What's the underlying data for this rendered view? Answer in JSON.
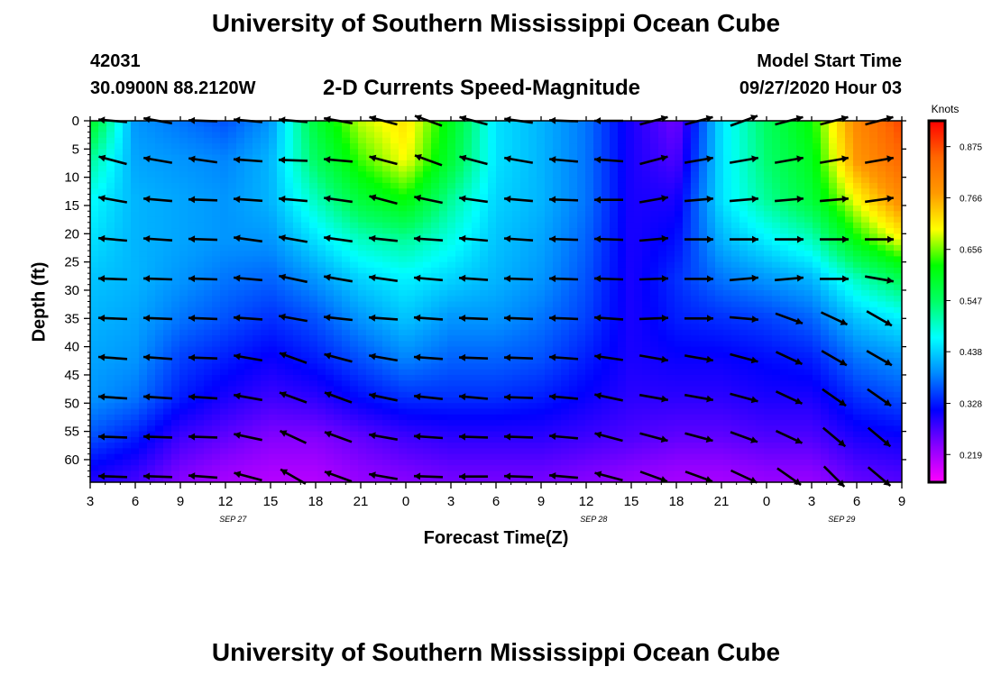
{
  "header": {
    "title": "University of Southern Mississippi Ocean Cube",
    "station_id": "42031",
    "station_coords": "30.0900N 88.2120W",
    "subtitle": "2-D Currents Speed-Magnitude",
    "model_label": "Model Start Time",
    "model_time": "09/27/2020 Hour 03"
  },
  "footer": {
    "title": "University of Southern Mississippi Ocean Cube"
  },
  "chart_data": {
    "type": "heatmap",
    "title": "2-D Currents Speed-Magnitude",
    "xlabel": "Forecast Time(Z)",
    "ylabel": "Depth (ft)",
    "colorbar_label": "Knots",
    "x_tick_labels": [
      "3",
      "6",
      "9",
      "12",
      "15",
      "18",
      "21",
      "0",
      "3",
      "6",
      "9",
      "12",
      "15",
      "18",
      "21",
      "0",
      "3",
      "6",
      "9"
    ],
    "x_hours": [
      0,
      3,
      6,
      9,
      12,
      15,
      18,
      21,
      24,
      27,
      30,
      33,
      36,
      39,
      42,
      45,
      48,
      51,
      54
    ],
    "date_labels": [
      {
        "text": "SEP 27",
        "hour": 9.5
      },
      {
        "text": "SEP 28",
        "hour": 33.5
      },
      {
        "text": "SEP 29",
        "hour": 50
      }
    ],
    "y_ticks": [
      0,
      5,
      10,
      15,
      20,
      25,
      30,
      35,
      40,
      45,
      50,
      55,
      60
    ],
    "ylim": [
      0,
      64
    ],
    "colorbar_ticks": [
      "0.875",
      "0.766",
      "0.656",
      "0.547",
      "0.438",
      "0.328",
      "0.219"
    ],
    "colorbar_range": [
      0.16,
      0.93
    ],
    "colors": {
      "scale": [
        "#ff00ff",
        "#8800ff",
        "#0000ff",
        "#0088ff",
        "#00ffff",
        "#00ff66",
        "#00ff00",
        "#ffff00",
        "#ff9900",
        "#ff6600",
        "#ff0000"
      ]
    },
    "speed_profiles": [
      {
        "hour": 0,
        "depths": [
          0,
          7,
          14,
          21,
          28,
          35,
          42,
          49,
          56,
          63
        ],
        "values": [
          0.6,
          0.52,
          0.47,
          0.45,
          0.43,
          0.42,
          0.41,
          0.4,
          0.36,
          0.3
        ]
      },
      {
        "hour": 3,
        "depths": [
          0,
          7,
          14,
          21,
          28,
          35,
          42,
          49,
          56,
          63
        ],
        "values": [
          0.4,
          0.41,
          0.42,
          0.42,
          0.42,
          0.41,
          0.4,
          0.38,
          0.33,
          0.28
        ]
      },
      {
        "hour": 6,
        "depths": [
          0,
          7,
          14,
          21,
          28,
          35,
          42,
          49,
          56,
          63
        ],
        "values": [
          0.38,
          0.4,
          0.41,
          0.41,
          0.4,
          0.38,
          0.35,
          0.33,
          0.28,
          0.24
        ]
      },
      {
        "hour": 9,
        "depths": [
          0,
          7,
          14,
          21,
          28,
          35,
          42,
          49,
          56,
          63
        ],
        "values": [
          0.36,
          0.39,
          0.4,
          0.4,
          0.38,
          0.36,
          0.33,
          0.3,
          0.26,
          0.22
        ]
      },
      {
        "hour": 12,
        "depths": [
          0,
          7,
          14,
          21,
          28,
          35,
          42,
          49,
          56,
          63
        ],
        "values": [
          0.4,
          0.42,
          0.42,
          0.4,
          0.37,
          0.34,
          0.31,
          0.28,
          0.24,
          0.21
        ]
      },
      {
        "hour": 15,
        "depths": [
          0,
          7,
          14,
          21,
          28,
          35,
          42,
          49,
          56,
          63
        ],
        "values": [
          0.58,
          0.55,
          0.5,
          0.45,
          0.4,
          0.36,
          0.33,
          0.29,
          0.24,
          0.21
        ]
      },
      {
        "hour": 18,
        "depths": [
          0,
          7,
          14,
          21,
          28,
          35,
          42,
          49,
          56,
          63
        ],
        "values": [
          0.68,
          0.64,
          0.58,
          0.5,
          0.44,
          0.4,
          0.36,
          0.32,
          0.26,
          0.23
        ]
      },
      {
        "hour": 21,
        "depths": [
          0,
          7,
          14,
          21,
          28,
          35,
          42,
          49,
          56,
          63
        ],
        "values": [
          0.72,
          0.7,
          0.62,
          0.52,
          0.46,
          0.43,
          0.39,
          0.34,
          0.28,
          0.24
        ]
      },
      {
        "hour": 24,
        "depths": [
          0,
          7,
          14,
          21,
          28,
          35,
          42,
          49,
          56,
          63
        ],
        "values": [
          0.6,
          0.58,
          0.52,
          0.48,
          0.44,
          0.4,
          0.37,
          0.34,
          0.29,
          0.25
        ]
      },
      {
        "hour": 27,
        "depths": [
          0,
          7,
          14,
          21,
          28,
          35,
          42,
          49,
          56,
          63
        ],
        "values": [
          0.45,
          0.45,
          0.44,
          0.43,
          0.42,
          0.4,
          0.37,
          0.34,
          0.29,
          0.25
        ]
      },
      {
        "hour": 30,
        "depths": [
          0,
          7,
          14,
          21,
          28,
          35,
          42,
          49,
          56,
          63
        ],
        "values": [
          0.42,
          0.42,
          0.42,
          0.41,
          0.4,
          0.38,
          0.36,
          0.33,
          0.29,
          0.25
        ]
      },
      {
        "hour": 33,
        "depths": [
          0,
          7,
          14,
          21,
          28,
          35,
          42,
          49,
          56,
          63
        ],
        "values": [
          0.38,
          0.38,
          0.38,
          0.37,
          0.36,
          0.35,
          0.33,
          0.31,
          0.28,
          0.24
        ]
      },
      {
        "hour": 36,
        "depths": [
          0,
          7,
          14,
          21,
          28,
          35,
          42,
          49,
          56,
          63
        ],
        "values": [
          0.3,
          0.3,
          0.3,
          0.3,
          0.3,
          0.3,
          0.3,
          0.29,
          0.27,
          0.23
        ]
      },
      {
        "hour": 39,
        "depths": [
          0,
          7,
          14,
          21,
          28,
          35,
          42,
          49,
          56,
          63
        ],
        "values": [
          0.25,
          0.27,
          0.3,
          0.32,
          0.34,
          0.33,
          0.31,
          0.29,
          0.26,
          0.22
        ]
      },
      {
        "hour": 42,
        "depths": [
          0,
          7,
          14,
          21,
          28,
          35,
          42,
          49,
          56,
          63
        ],
        "values": [
          0.45,
          0.45,
          0.45,
          0.42,
          0.38,
          0.34,
          0.31,
          0.29,
          0.26,
          0.22
        ]
      },
      {
        "hour": 45,
        "depths": [
          0,
          7,
          14,
          21,
          28,
          35,
          42,
          49,
          56,
          63
        ],
        "values": [
          0.55,
          0.54,
          0.52,
          0.46,
          0.4,
          0.35,
          0.32,
          0.3,
          0.27,
          0.23
        ]
      },
      {
        "hour": 48,
        "depths": [
          0,
          7,
          14,
          21,
          28,
          35,
          42,
          49,
          56,
          63
        ],
        "values": [
          0.62,
          0.6,
          0.58,
          0.5,
          0.42,
          0.37,
          0.33,
          0.3,
          0.27,
          0.23
        ]
      },
      {
        "hour": 51,
        "depths": [
          0,
          7,
          14,
          21,
          28,
          35,
          42,
          49,
          56,
          63
        ],
        "values": [
          0.8,
          0.78,
          0.7,
          0.62,
          0.5,
          0.43,
          0.38,
          0.34,
          0.3,
          0.26
        ]
      },
      {
        "hour": 54,
        "depths": [
          0,
          7,
          14,
          21,
          28,
          35,
          42,
          49,
          56,
          63
        ],
        "values": [
          0.88,
          0.85,
          0.8,
          0.7,
          0.56,
          0.46,
          0.4,
          0.36,
          0.31,
          0.27
        ]
      }
    ],
    "vector_hours": [
      1.5,
      4.5,
      7.5,
      10.5,
      13.5,
      16.5,
      19.5,
      22.5,
      25.5,
      28.5,
      31.5,
      34.5,
      37.5,
      40.5,
      43.5,
      46.5,
      49.5,
      52.5
    ],
    "vector_depths": [
      0,
      7,
      14,
      21,
      28,
      35,
      42,
      49,
      56,
      63
    ],
    "vector_directions_deg": [
      [
        175,
        170,
        178,
        175,
        175,
        170,
        165,
        160,
        165,
        172,
        178,
        180,
        15,
        15,
        20,
        15,
        15,
        15
      ],
      [
        165,
        170,
        172,
        176,
        178,
        175,
        165,
        160,
        165,
        170,
        175,
        176,
        15,
        10,
        10,
        10,
        10,
        10
      ],
      [
        170,
        175,
        178,
        176,
        175,
        172,
        165,
        168,
        172,
        175,
        178,
        180,
        10,
        5,
        5,
        5,
        5,
        8
      ],
      [
        175,
        176,
        178,
        172,
        170,
        172,
        174,
        176,
        175,
        176,
        178,
        178,
        5,
        0,
        0,
        0,
        0,
        0
      ],
      [
        178,
        178,
        178,
        175,
        168,
        170,
        172,
        175,
        176,
        178,
        178,
        178,
        2,
        0,
        5,
        5,
        0,
        -10
      ],
      [
        178,
        178,
        178,
        176,
        170,
        174,
        176,
        176,
        178,
        178,
        178,
        176,
        2,
        0,
        -5,
        -20,
        -25,
        -30
      ],
      [
        176,
        176,
        178,
        170,
        160,
        165,
        170,
        176,
        178,
        178,
        176,
        172,
        -10,
        -10,
        -15,
        -25,
        -30,
        -30
      ],
      [
        176,
        176,
        176,
        170,
        160,
        160,
        168,
        174,
        175,
        178,
        175,
        168,
        -10,
        -10,
        -15,
        -25,
        -35,
        -35
      ],
      [
        178,
        178,
        178,
        168,
        155,
        160,
        170,
        176,
        178,
        178,
        175,
        165,
        -15,
        -15,
        -20,
        -25,
        -40,
        -40
      ],
      [
        178,
        178,
        176,
        165,
        150,
        160,
        170,
        178,
        180,
        178,
        175,
        165,
        -20,
        -20,
        -25,
        -35,
        -45,
        -40
      ]
    ]
  }
}
